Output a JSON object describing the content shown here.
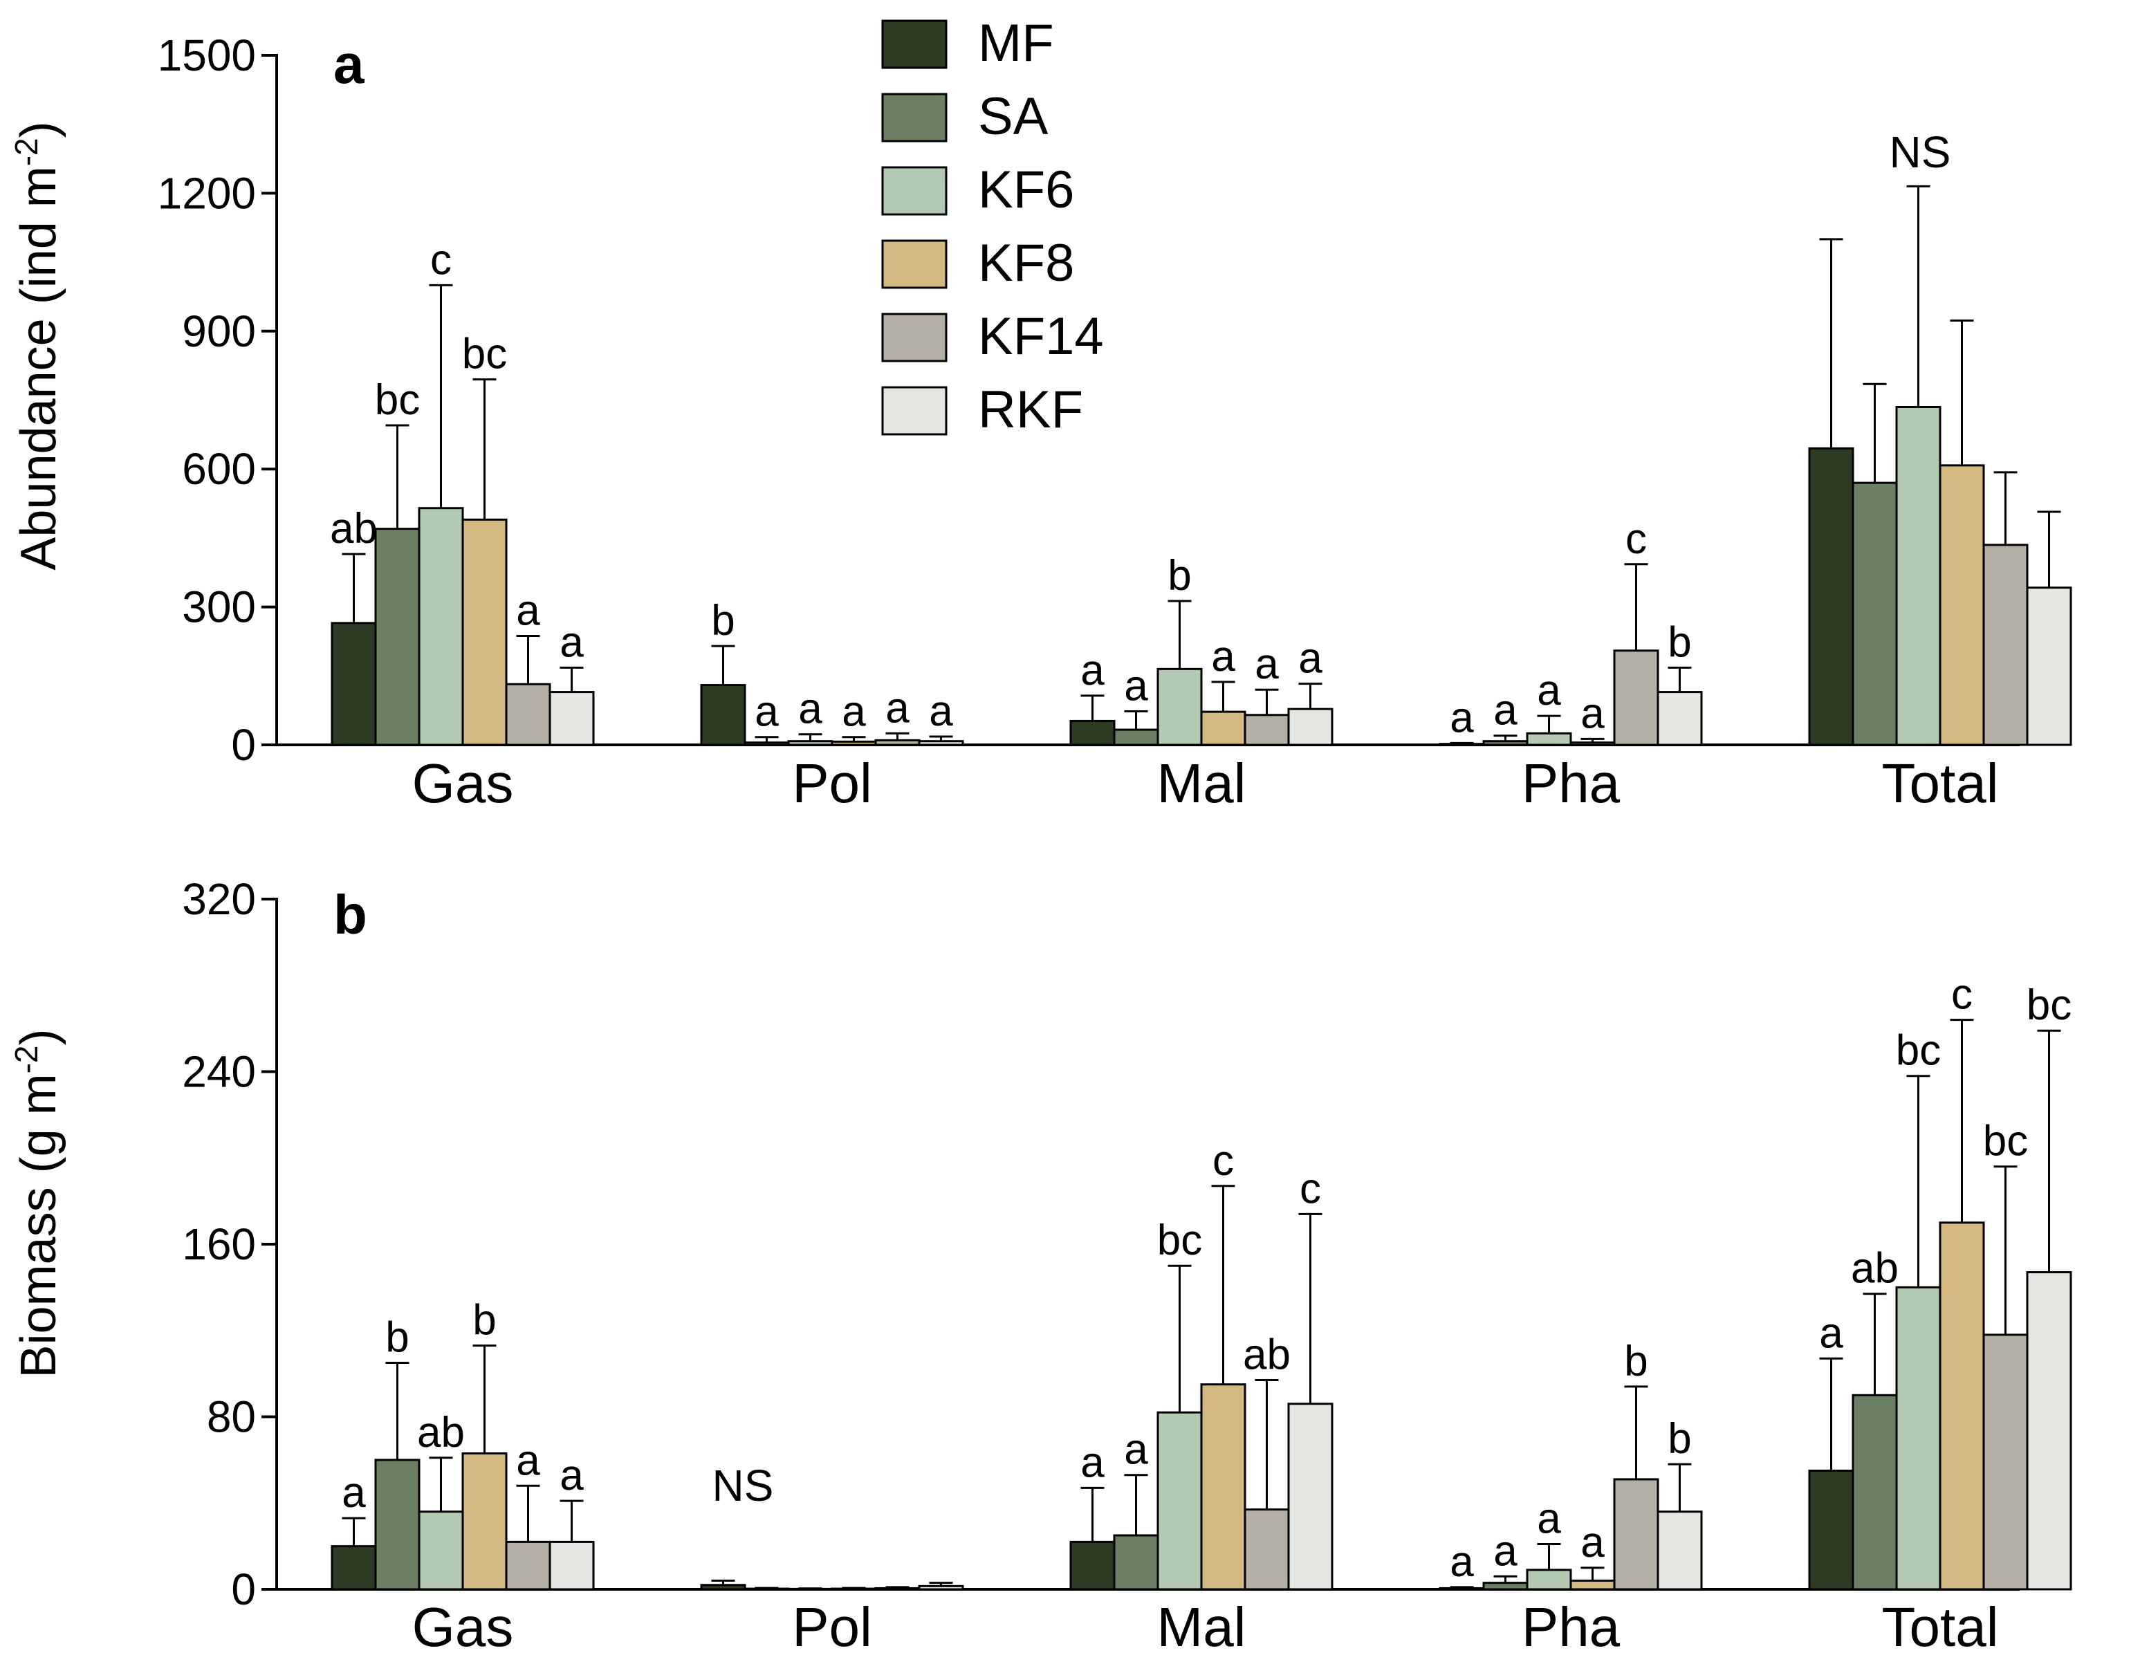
{
  "legend": {
    "items": [
      {
        "name": "MF",
        "color": "#2e3b25"
      },
      {
        "name": "SA",
        "color": "#6b7f65"
      },
      {
        "name": "KF6",
        "color": "#b5cab3"
      },
      {
        "name": "KF8",
        "color": "#d4b982"
      },
      {
        "name": "KF14",
        "color": "#b5b0a5"
      },
      {
        "name": "RKF",
        "color": "#e4e6e2"
      }
    ]
  },
  "chart_data": [
    {
      "type": "bar",
      "panel_label": "a",
      "ylabel": "Abundance (ind m",
      "ylabel_sup": "-2",
      "ylabel_close": ")",
      "ylim": [
        0,
        1500
      ],
      "yticks": [
        0,
        300,
        600,
        900,
        1200,
        1500
      ],
      "categories": [
        "Gas",
        "Pol",
        "Mal",
        "Pha",
        "Total"
      ],
      "series": [
        {
          "name": "MF",
          "values": [
            265,
            130,
            52,
            2,
            645
          ],
          "errors": [
            150,
            85,
            55,
            2,
            455
          ]
        },
        {
          "name": "SA",
          "values": [
            470,
            5,
            33,
            8,
            570
          ],
          "errors": [
            225,
            12,
            40,
            12,
            215
          ]
        },
        {
          "name": "KF6",
          "values": [
            515,
            8,
            165,
            25,
            735
          ],
          "errors": [
            485,
            15,
            148,
            38,
            480
          ]
        },
        {
          "name": "KF8",
          "values": [
            490,
            7,
            72,
            5,
            608
          ],
          "errors": [
            305,
            10,
            65,
            8,
            315
          ]
        },
        {
          "name": "KF14",
          "values": [
            132,
            10,
            65,
            205,
            435
          ],
          "errors": [
            105,
            15,
            55,
            188,
            158
          ]
        },
        {
          "name": "RKF",
          "values": [
            115,
            8,
            78,
            115,
            342
          ],
          "errors": [
            53,
            10,
            55,
            53,
            165
          ]
        }
      ],
      "significance": [
        [
          "ab",
          "bc",
          "c",
          "bc",
          "a",
          "a"
        ],
        [
          "b",
          "a",
          "a",
          "a",
          "a",
          "a"
        ],
        [
          "a",
          "a",
          "b",
          "a",
          "a",
          "a"
        ],
        [
          "a",
          "a",
          "a",
          "a",
          "c",
          "b"
        ],
        [
          "",
          "",
          "",
          "",
          "",
          ""
        ]
      ],
      "group_notes": [
        "",
        "",
        "",
        "",
        "NS"
      ]
    },
    {
      "type": "bar",
      "panel_label": "b",
      "ylabel": "Biomass (g m",
      "ylabel_sup": "-2",
      "ylabel_close": ")",
      "ylim": [
        0,
        320
      ],
      "yticks": [
        0,
        80,
        160,
        240,
        320
      ],
      "categories": [
        "Gas",
        "Pol",
        "Mal",
        "Pha",
        "Total"
      ],
      "series": [
        {
          "name": "MF",
          "values": [
            20,
            2,
            22,
            0.5,
            55
          ],
          "errors": [
            13,
            2,
            25,
            0.5,
            52
          ]
        },
        {
          "name": "SA",
          "values": [
            60,
            0.3,
            25,
            3,
            90
          ],
          "errors": [
            45,
            0.3,
            28,
            3,
            47
          ]
        },
        {
          "name": "KF6",
          "values": [
            36,
            0.2,
            82,
            9,
            140
          ],
          "errors": [
            25,
            0.2,
            68,
            12,
            98
          ]
        },
        {
          "name": "KF8",
          "values": [
            63,
            0.3,
            95,
            4,
            170
          ],
          "errors": [
            50,
            0.3,
            92,
            6,
            94
          ]
        },
        {
          "name": "KF14",
          "values": [
            22,
            0.5,
            37,
            51,
            118
          ],
          "errors": [
            26,
            0.5,
            60,
            43,
            78
          ]
        },
        {
          "name": "RKF",
          "values": [
            22,
            1.5,
            86,
            36,
            147
          ],
          "errors": [
            19,
            1.5,
            88,
            22,
            112
          ]
        }
      ],
      "significance": [
        [
          "a",
          "b",
          "ab",
          "b",
          "a",
          "a"
        ],
        [
          "",
          "",
          "",
          "",
          "",
          ""
        ],
        [
          "a",
          "a",
          "bc",
          "c",
          "ab",
          "c"
        ],
        [
          "a",
          "a",
          "a",
          "a",
          "b",
          "b"
        ],
        [
          "a",
          "ab",
          "bc",
          "c",
          "bc",
          "bc"
        ]
      ],
      "group_notes": [
        "",
        "NS",
        "",
        "",
        ""
      ]
    }
  ]
}
